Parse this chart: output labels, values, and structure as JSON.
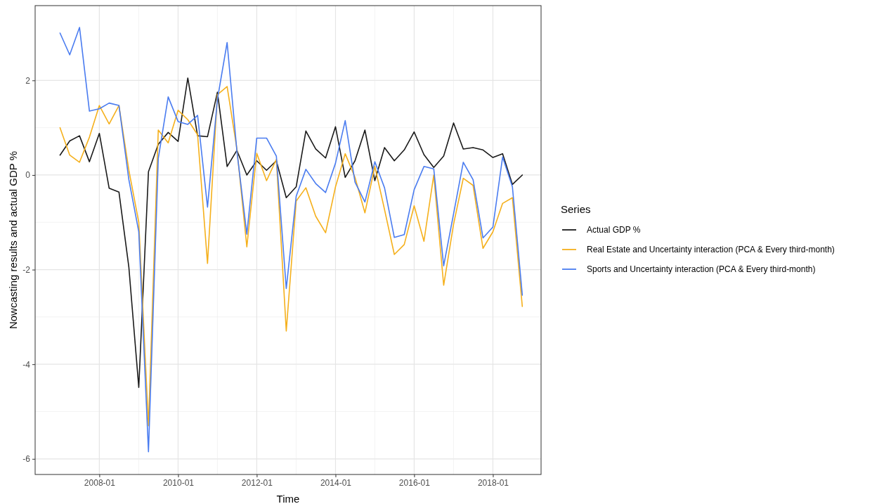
{
  "chart_data": {
    "type": "line",
    "xlabel": "Time",
    "ylabel": "Nowcasting results and actual GDP %",
    "legend_title": "Series",
    "legend": "right",
    "grid": true,
    "line_style": "solid",
    "x": [
      "2007-01",
      "2007-04",
      "2007-07",
      "2007-10",
      "2008-01",
      "2008-04",
      "2008-07",
      "2008-10",
      "2009-01",
      "2009-04",
      "2009-07",
      "2009-10",
      "2010-01",
      "2010-04",
      "2010-07",
      "2010-10",
      "2011-01",
      "2011-04",
      "2011-07",
      "2011-10",
      "2012-01",
      "2012-04",
      "2012-07",
      "2012-10",
      "2013-01",
      "2013-04",
      "2013-07",
      "2013-10",
      "2014-01",
      "2014-04",
      "2014-07",
      "2014-10",
      "2015-01",
      "2015-04",
      "2015-07",
      "2015-10",
      "2016-01",
      "2016-04",
      "2016-07",
      "2016-10",
      "2017-01",
      "2017-04",
      "2017-07",
      "2017-10",
      "2018-01",
      "2018-04",
      "2018-07",
      "2018-10"
    ],
    "xlim": [
      "2006-05-15",
      "2019-03-24"
    ],
    "xticks": [
      "2008-01",
      "2010-01",
      "2012-01",
      "2014-01",
      "2016-01",
      "2018-01"
    ],
    "ylim": [
      -6.33,
      3.58
    ],
    "yticks": [
      -6,
      -4,
      -2,
      0,
      2
    ],
    "series": [
      {
        "name": "Actual GDP %",
        "color": "#1a1a1a",
        "values": [
          0.42,
          0.72,
          0.83,
          0.28,
          0.88,
          -0.28,
          -0.36,
          -1.95,
          -4.49,
          0.07,
          0.65,
          0.9,
          0.71,
          2.05,
          0.83,
          0.81,
          1.75,
          0.18,
          0.52,
          0.0,
          0.3,
          0.1,
          0.3,
          -0.48,
          -0.25,
          0.93,
          0.55,
          0.36,
          1.02,
          -0.05,
          0.3,
          0.95,
          -0.12,
          0.58,
          0.3,
          0.53,
          0.91,
          0.43,
          0.16,
          0.4,
          1.1,
          0.55,
          0.58,
          0.53,
          0.37,
          0.45,
          -0.2,
          0.0
        ]
      },
      {
        "name": "Real Estate and Uncertainty interaction (PCA & Every third-month)",
        "color": "#f5b01c",
        "values": [
          1.0,
          0.42,
          0.27,
          0.8,
          1.47,
          1.08,
          1.47,
          0.1,
          -1.0,
          -5.3,
          0.95,
          0.68,
          1.37,
          1.17,
          0.85,
          -1.87,
          1.7,
          1.87,
          0.55,
          -1.52,
          0.46,
          -0.12,
          0.33,
          -3.3,
          -0.55,
          -0.27,
          -0.87,
          -1.22,
          -0.25,
          0.45,
          -0.05,
          -0.8,
          0.18,
          -0.73,
          -1.68,
          -1.47,
          -0.65,
          -1.4,
          0.0,
          -2.33,
          -1.04,
          -0.07,
          -0.22,
          -1.55,
          -1.2,
          -0.6,
          -0.48,
          -2.78
        ]
      },
      {
        "name": "Sports and Uncertainty interaction (PCA & Every third-month)",
        "color": "#4a7cf0",
        "values": [
          3.0,
          2.54,
          3.12,
          1.35,
          1.4,
          1.52,
          1.47,
          -0.1,
          -1.2,
          -5.85,
          0.35,
          1.65,
          1.13,
          1.07,
          1.26,
          -0.68,
          1.6,
          2.8,
          0.5,
          -1.25,
          0.78,
          0.78,
          0.4,
          -2.4,
          -0.45,
          0.12,
          -0.18,
          -0.37,
          0.25,
          1.15,
          -0.15,
          -0.57,
          0.28,
          -0.27,
          -1.32,
          -1.26,
          -0.31,
          0.18,
          0.13,
          -1.92,
          -0.82,
          0.27,
          -0.1,
          -1.33,
          -1.1,
          0.38,
          -0.25,
          -2.54
        ]
      }
    ]
  }
}
